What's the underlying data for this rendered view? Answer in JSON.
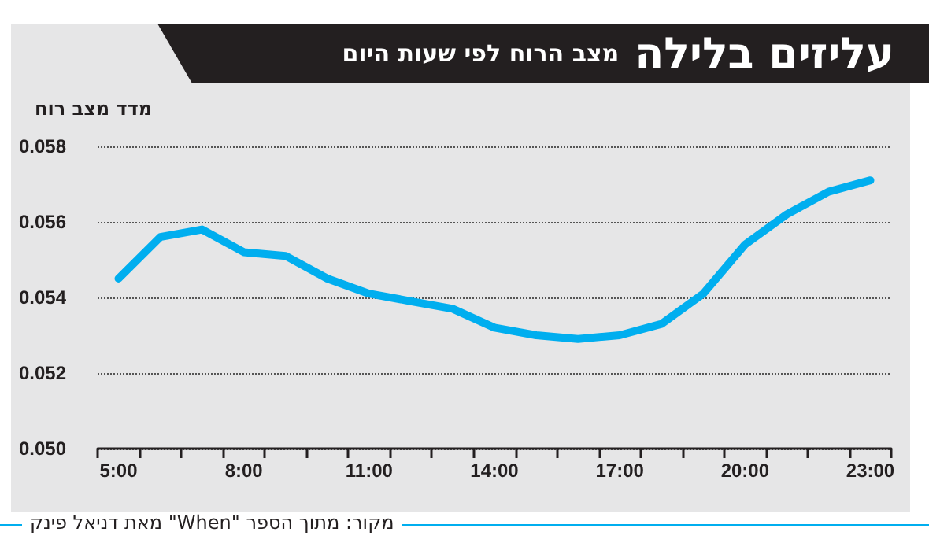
{
  "chart_data": {
    "type": "line",
    "title": "עליזים בלילה",
    "subtitle": "מצב הרוח לפי שעות היום",
    "ylabel": "מדד מצב רוח",
    "annotations": [
      "מקור: מתוך הספר \"When\" מאת דניאל פינק"
    ],
    "categories": [
      "5:00",
      null,
      null,
      "8:00",
      null,
      null,
      "11:00",
      null,
      null,
      "14:00",
      null,
      null,
      "17:00",
      null,
      null,
      "20:00",
      null,
      null,
      "23:00"
    ],
    "series": [
      {
        "color": "#00aeef",
        "values": [
          0.0545,
          0.0556,
          0.0558,
          0.0552,
          0.0551,
          0.0545,
          0.0541,
          0.0539,
          0.0537,
          0.0532,
          0.053,
          0.0529,
          0.053,
          0.0533,
          0.0541,
          0.0554,
          0.0562,
          0.0568,
          0.0571
        ]
      }
    ],
    "ylim": [
      0.05,
      0.058
    ],
    "yticks": [
      {
        "value": 0.05,
        "label": "0.050"
      },
      {
        "value": 0.052,
        "label": "0.052"
      },
      {
        "value": 0.054,
        "label": "0.054"
      },
      {
        "value": 0.056,
        "label": "0.056"
      },
      {
        "value": 0.058,
        "label": "0.058"
      }
    ],
    "grid": "y",
    "marker": "none",
    "line_style": "solid"
  }
}
